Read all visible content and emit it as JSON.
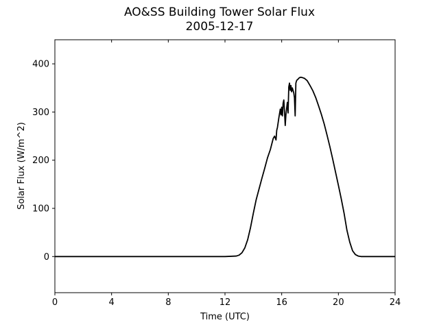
{
  "chart_data": {
    "type": "line",
    "title": "AO&SS Building Tower Solar Flux",
    "subtitle": "2005-12-17",
    "xlabel": "Time (UTC)",
    "ylabel": "Solar Flux (W/m^2)",
    "xlim": [
      0,
      24
    ],
    "ylim": [
      -75,
      450
    ],
    "xticks": [
      0,
      4,
      8,
      12,
      16,
      20,
      24
    ],
    "yticks": [
      0,
      100,
      200,
      300,
      400
    ],
    "grid": false,
    "line_color": "#000000",
    "series": [
      {
        "x": [
          0,
          12,
          12.8,
          13.0,
          13.2,
          13.4,
          13.6,
          13.8,
          14.0,
          14.2,
          14.4,
          14.6,
          14.8,
          15.0,
          15.2,
          15.4,
          15.5,
          15.6,
          15.65,
          15.7,
          15.8,
          15.9,
          15.95,
          16.0,
          16.05,
          16.1,
          16.15,
          16.2,
          16.25,
          16.3,
          16.35,
          16.4,
          16.45,
          16.5,
          16.55,
          16.6,
          16.65,
          16.7,
          16.75,
          16.8,
          16.85,
          16.9,
          16.95,
          17.0,
          17.05,
          17.1,
          17.15,
          17.2,
          17.25,
          17.3,
          17.4,
          17.6,
          17.8,
          18.0,
          18.2,
          18.4,
          18.6,
          18.8,
          19.0,
          19.2,
          19.4,
          19.6,
          19.8,
          20.0,
          20.2,
          20.4,
          20.6,
          20.8,
          21.0,
          21.2,
          21.4,
          21.6,
          21.8,
          22.0,
          22.2,
          22.4,
          22.6,
          22.8,
          23.0,
          23.5,
          24.0
        ],
        "y": [
          0,
          0,
          1,
          3,
          8,
          18,
          35,
          60,
          90,
          118,
          140,
          162,
          183,
          205,
          222,
          245,
          250,
          242,
          262,
          268,
          288,
          306,
          294,
          310,
          292,
          318,
          325,
          300,
          272,
          295,
          308,
          320,
          298,
          352,
          360,
          345,
          355,
          342,
          350,
          345,
          340,
          330,
          292,
          360,
          365,
          367,
          368,
          370,
          371,
          372,
          372,
          370,
          365,
          355,
          344,
          330,
          313,
          295,
          275,
          252,
          228,
          202,
          175,
          148,
          120,
          90,
          55,
          30,
          12,
          4,
          1,
          0,
          0,
          0,
          0,
          0,
          0,
          0,
          0,
          0,
          0
        ]
      }
    ]
  }
}
